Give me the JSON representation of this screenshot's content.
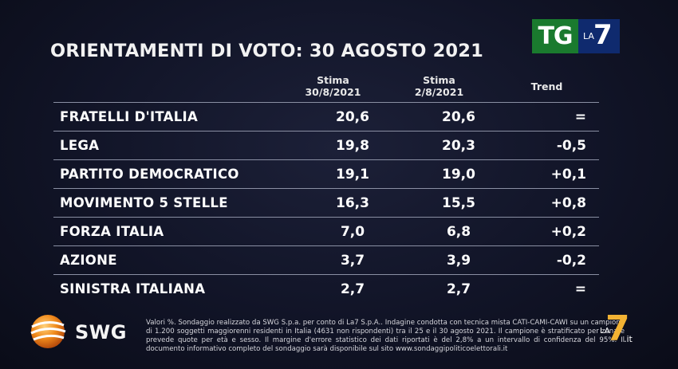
{
  "header": {
    "title": "ORIENTAMENTI DI VOTO: 30 AGOSTO 2021",
    "logo": {
      "tg": "TG",
      "la": "LA",
      "seven": "7"
    }
  },
  "columns": {
    "stima1": {
      "line1": "Stima",
      "line2": "30/8/2021"
    },
    "stima2": {
      "line1": "Stima",
      "line2": "2/8/2021"
    },
    "trend": "Trend"
  },
  "rows": [
    {
      "party": "FRATELLI D'ITALIA",
      "v1": "20,6",
      "v2": "20,6",
      "trend": "="
    },
    {
      "party": "LEGA",
      "v1": "19,8",
      "v2": "20,3",
      "trend": "-0,5"
    },
    {
      "party": "PARTITO DEMOCRATICO",
      "v1": "19,1",
      "v2": "19,0",
      "trend": "+0,1"
    },
    {
      "party": "MOVIMENTO 5 STELLE",
      "v1": "16,3",
      "v2": "15,5",
      "trend": "+0,8"
    },
    {
      "party": "FORZA ITALIA",
      "v1": "7,0",
      "v2": "6,8",
      "trend": "+0,2"
    },
    {
      "party": "AZIONE",
      "v1": "3,7",
      "v2": "3,9",
      "trend": "-0,2"
    },
    {
      "party": "SINISTRA ITALIANA",
      "v1": "2,7",
      "v2": "2,7",
      "trend": "="
    }
  ],
  "footer": {
    "brand": "SWG",
    "note": "Valori %. Sondaggio realizzato da SWG S.p.a. per conto di La7 S.p.A.. Indagine condotta con tecnica mista CATI-CAMI-CAWI su un campione di 1.200 soggetti maggiorenni residenti in Italia (4631 non rispondenti) tra il 25 e il 30 agosto 2021. Il campione è stratificato per zona e prevede quote per età e sesso. Il margine d'errore statistico dei dati riportati è del 2,8% a un intervallo di confidenza del 95%. Il documento informativo completo del sondaggio sarà disponibile sul sito www.sondaggipoliticoelettorali.it",
    "corner_logo": {
      "la": "LA",
      "seven": "7",
      "it": ".it"
    }
  },
  "colors": {
    "background": "#111427",
    "tg_green": "#1a7a2e",
    "la7_blue": "#0f2a6e",
    "la7_gold": "#f2b233",
    "swg_orange": "#f08a1c"
  }
}
